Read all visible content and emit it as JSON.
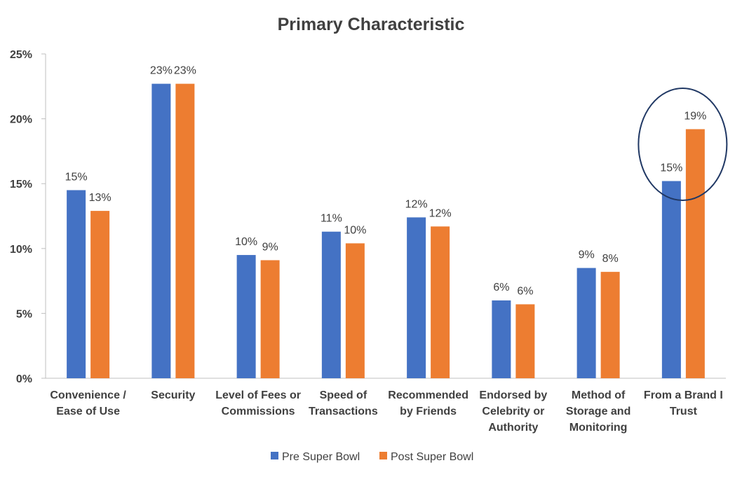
{
  "chart_data": {
    "type": "bar",
    "title": "Primary Characteristic",
    "xlabel": "",
    "ylabel": "",
    "ylim": [
      0,
      0.25
    ],
    "yticks": [
      0,
      0.05,
      0.1,
      0.15,
      0.2,
      0.25
    ],
    "ytick_labels": [
      "0%",
      "5%",
      "10%",
      "15%",
      "20%",
      "25%"
    ],
    "grid": false,
    "legend_position": "bottom",
    "categories": [
      [
        "Convenience /",
        "Ease of Use"
      ],
      [
        "Security"
      ],
      [
        "Level of Fees or",
        "Commissions"
      ],
      [
        "Speed of",
        "Transactions"
      ],
      [
        "Recommended",
        "by Friends"
      ],
      [
        "Endorsed by",
        "Celebrity or",
        "Authority"
      ],
      [
        "Method of",
        "Storage and",
        "Monitoring"
      ],
      [
        "From a Brand I",
        "Trust"
      ]
    ],
    "series": [
      {
        "name": "Pre Super Bowl",
        "color": "#4472C4",
        "values": [
          0.145,
          0.227,
          0.095,
          0.113,
          0.124,
          0.06,
          0.085,
          0.152
        ],
        "labels": [
          "15%",
          "23%",
          "10%",
          "11%",
          "12%",
          "6%",
          "9%",
          "15%"
        ]
      },
      {
        "name": "Post Super Bowl",
        "color": "#ED7D31",
        "values": [
          0.129,
          0.227,
          0.091,
          0.104,
          0.117,
          0.057,
          0.082,
          0.192
        ],
        "labels": [
          "13%",
          "23%",
          "9%",
          "10%",
          "12%",
          "6%",
          "8%",
          "19%"
        ]
      }
    ],
    "annotation": {
      "shape": "ellipse",
      "color": "#203864",
      "category_index": 7
    }
  }
}
